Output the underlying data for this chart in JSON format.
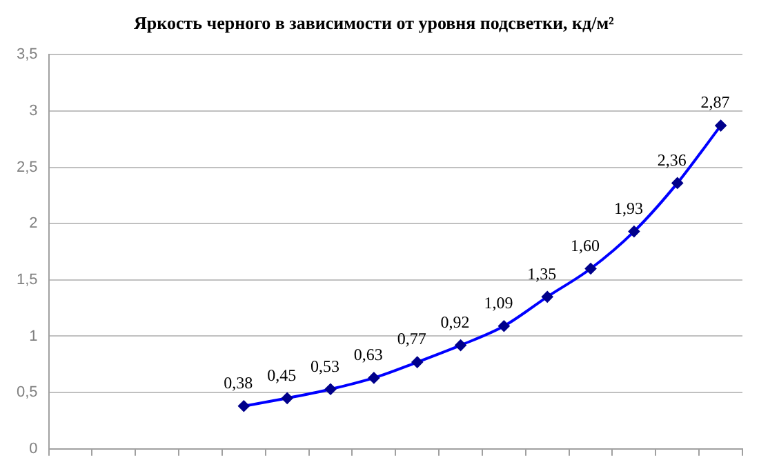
{
  "chart_data": {
    "type": "line",
    "title": "Яркость черного в зависимости от уровня подсветки, кд/м²",
    "categories": [
      null,
      null,
      null,
      null,
      null,
      null,
      null,
      null,
      null,
      null,
      null,
      null,
      null,
      null,
      null,
      null
    ],
    "series": [
      {
        "color": "#0000ff",
        "values": [
          null,
          null,
          null,
          null,
          0.38,
          0.45,
          0.53,
          0.63,
          0.77,
          0.92,
          1.09,
          1.35,
          1.6,
          1.93,
          2.36,
          2.87
        ],
        "value_labels": [
          null,
          null,
          null,
          null,
          "0,38",
          "0,45",
          "0,53",
          "0,63",
          "0,77",
          "0,92",
          "1,09",
          "1,35",
          "1,60",
          "1,93",
          "2,36",
          "2,87"
        ]
      }
    ],
    "ylim": [
      0,
      3.5
    ],
    "yticks": [
      0,
      {
        "value": 0.5,
        "label": "0,5"
      },
      1,
      {
        "value": 1.5,
        "label": "1,5"
      },
      2,
      {
        "value": 2.5,
        "label": "2,5"
      },
      3,
      {
        "value": 3.5,
        "label": "3,5"
      }
    ],
    "grid": "y",
    "legend": false,
    "marker": "diamond",
    "line_style": "solid",
    "tick_labels": "y"
  }
}
